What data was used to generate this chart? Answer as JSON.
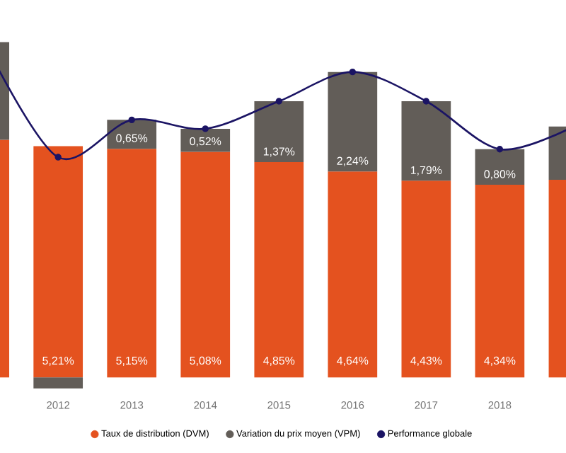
{
  "chart_data": {
    "type": "bar",
    "stacked": true,
    "legend": "bottom",
    "categories": [
      null,
      "2012",
      "2013",
      "2014",
      "2015",
      "2016",
      "2017",
      "2018",
      null
    ],
    "series": [
      {
        "name": "Taux de distribution (DVM)",
        "color": "#e4521f",
        "values": [
          5.35,
          5.21,
          5.15,
          5.08,
          4.85,
          4.64,
          4.43,
          4.34,
          4.45
        ],
        "value_labels": [
          null,
          "5,21%",
          "5,15%",
          "5,08%",
          "4,85%",
          "4,64%",
          "4,43%",
          "4,34%",
          null
        ]
      },
      {
        "name": "Variation du prix moyen (VPM)",
        "color": "#625d58",
        "values": [
          2.2,
          -0.25,
          0.65,
          0.52,
          1.37,
          2.24,
          1.79,
          0.8,
          1.2
        ],
        "value_labels": [
          null,
          null,
          "0,65%",
          "0,52%",
          "1,37%",
          "2,24%",
          "1,79%",
          "0,80%",
          null
        ]
      },
      {
        "name": "Performance globale",
        "type": "line",
        "color": "#1b1464",
        "marker": "circle",
        "values": [
          7.55,
          4.96,
          5.8,
          5.6,
          6.22,
          6.88,
          6.22,
          5.14,
          5.65
        ]
      }
    ]
  }
}
